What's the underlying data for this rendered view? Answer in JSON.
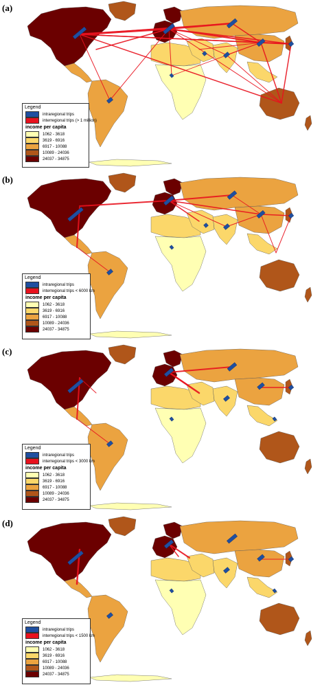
{
  "colors": {
    "ocean": "#ffffff",
    "intraregional": "#1f4fa0",
    "interregional": "#e8121e",
    "income": [
      "#ffffb3",
      "#fbd76a",
      "#eba340",
      "#b0561a",
      "#6b0000"
    ]
  },
  "legend": {
    "title": "Legend",
    "intraregional_label": "intraregional trips",
    "income_title": "income per capita",
    "income_classes": [
      "1062 - 3618",
      "3619 - 6916",
      "6917 - 10088",
      "10089 - 24036",
      "24037 - 34875"
    ]
  },
  "panels": [
    {
      "label": "(a)",
      "interregional_label": "interregional trips (> 1 million)"
    },
    {
      "label": "(b)",
      "interregional_label": "interregional trips < 6000 km"
    },
    {
      "label": "(c)",
      "interregional_label": "interregional trips < 3000 km"
    },
    {
      "label": "(d)",
      "interregional_label": "interregional trips < 1500 km"
    }
  ]
}
